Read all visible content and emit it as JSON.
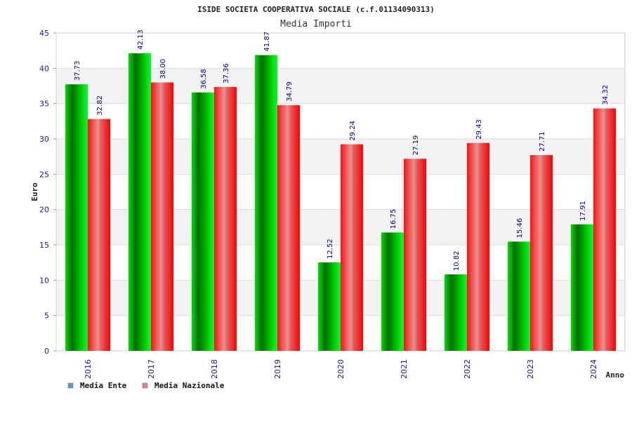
{
  "chart_data": {
    "type": "bar",
    "title": "ISIDE SOCIETA COOPERATIVA SOCIALE (c.f.01134090313)",
    "subtitle": "Media Importi",
    "xlabel": "Anno",
    "ylabel": "Euro",
    "ylim": [
      0,
      45
    ],
    "yticks": [
      0,
      5,
      10,
      15,
      20,
      25,
      30,
      35,
      40,
      45
    ],
    "grid": true,
    "legend_position": "bottom-left",
    "categories": [
      "2016",
      "2017",
      "2018",
      "2019",
      "2020",
      "2021",
      "2022",
      "2023",
      "2024"
    ],
    "series": [
      {
        "name": "Media Ente",
        "color": "#00c000",
        "legend_color": "#5b9bd5",
        "values": [
          37.73,
          42.13,
          36.58,
          41.87,
          12.52,
          16.75,
          10.82,
          15.46,
          17.91
        ],
        "labels": [
          "37.73",
          "42.13",
          "36.58",
          "41.87",
          "12.52",
          "16.75",
          "10.82",
          "15.46",
          "17.91"
        ]
      },
      {
        "name": "Media Nazionale",
        "color": "#ff2020",
        "legend_color": "#e07aa8",
        "values": [
          32.82,
          38.0,
          37.36,
          34.79,
          29.24,
          27.19,
          29.43,
          27.71,
          34.32
        ],
        "labels": [
          "32.82",
          "38.00",
          "37.36",
          "34.79",
          "29.24",
          "27.19",
          "29.43",
          "27.71",
          "34.32"
        ]
      }
    ]
  }
}
